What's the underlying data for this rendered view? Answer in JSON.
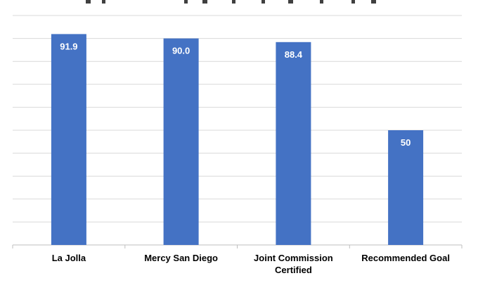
{
  "chart_data": {
    "type": "bar",
    "title": "",
    "xlabel": "",
    "ylabel": "",
    "categories": [
      [
        "La Jolla"
      ],
      [
        "Mercy San Diego"
      ],
      [
        "Joint Commission",
        "Certified"
      ],
      [
        "Recommended Goal"
      ]
    ],
    "values": [
      91.9,
      90.0,
      88.4,
      50
    ],
    "data_labels": [
      "91.9",
      "90.0",
      "88.4",
      "50"
    ],
    "ylim": [
      0,
      100
    ],
    "gridlines": 10,
    "grid": true,
    "legend": "none",
    "colors": {
      "bar": "#4472c4",
      "grid": "#d9d9d9",
      "axis": "#bfbfbf",
      "label": "#ffffff",
      "category_text": "#000000"
    }
  }
}
